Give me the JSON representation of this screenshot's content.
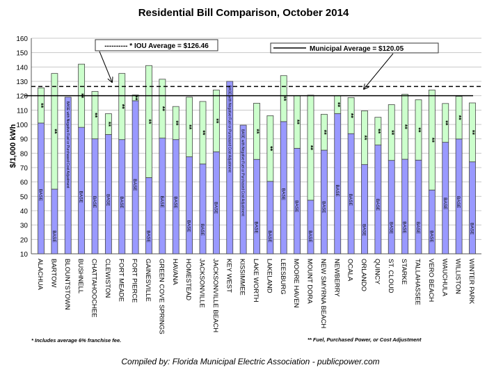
{
  "chart_data": {
    "type": "bar",
    "stacked": true,
    "title": "Residential Bill Comparison, October 2014",
    "ylabel": "$/1,000 kWh",
    "xlabel": "",
    "ylim": [
      10,
      160
    ],
    "yticks": [
      10,
      20,
      30,
      40,
      50,
      60,
      70,
      80,
      90,
      100,
      110,
      120,
      130,
      140,
      150,
      160
    ],
    "grid": true,
    "categories": [
      "ALACHUA",
      "BARTOW",
      "BLOUNTSTOWN",
      "BUSHNELL",
      "CHATTAHOOCHEE",
      "CLEWISTON",
      "FORT MEADE",
      "FORT PIERCE",
      "GAINESVILLE",
      "GREEN COVE SPRINGS",
      "HAVANA",
      "HOMESTEAD",
      "JACKSONVILLE",
      "JACKSONVILLE BEACH",
      "KEY WEST",
      "KISSIMMEE",
      "LAKE WORTH",
      "LAKELAND",
      "LEESBURG",
      "MOORE HAVEN",
      "MOUNT DORA",
      "NEW SMYRNA BEACH",
      "NEWBERRY",
      "OCALA",
      "ORLANDO",
      "QUINCY",
      "ST. CLOUD",
      "STARKE",
      "TALLAHASSEE",
      "VERO BEACH",
      "WAUCHULA",
      "WILLISTON",
      "WINTER PARK"
    ],
    "totals": [
      125.5,
      135.5,
      119,
      142,
      123,
      107.5,
      135.5,
      120.5,
      141,
      131.5,
      112.5,
      119,
      116,
      124,
      130,
      99.5,
      114.8,
      106.1,
      134,
      120.1,
      120.4,
      107.1,
      120,
      118.7,
      109.5,
      105,
      113.8,
      121,
      117.2,
      124,
      114.6,
      119.6,
      115
    ],
    "base": [
      101,
      55,
      119,
      98,
      90,
      93,
      89.5,
      116.5,
      63,
      90.5,
      89.5,
      77.5,
      72.5,
      81,
      130,
      99.5,
      75.7,
      60.4,
      102,
      83.4,
      47.3,
      82.1,
      107.6,
      93.6,
      72.1,
      85.7,
      75,
      75.8,
      75.2,
      54.4,
      87.6,
      89.9,
      74
    ],
    "negative_fuel": [
      false,
      false,
      true,
      false,
      false,
      false,
      false,
      false,
      false,
      false,
      false,
      false,
      false,
      false,
      true,
      true,
      false,
      false,
      false,
      false,
      false,
      false,
      false,
      false,
      false,
      false,
      false,
      false,
      false,
      false,
      false,
      false,
      false
    ],
    "base_label": "BASE",
    "fuel_label": "**",
    "negative_fuel_label": "BASE with Negative Fuel or Purchased Cost Adjustment",
    "reference_lines": [
      {
        "label": "---------- * IOU Average = $126.46",
        "value": 126.46,
        "style": "dashed"
      },
      {
        "label": "Municipal Average = $120.05",
        "value": 120.05,
        "style": "solid"
      }
    ],
    "colors": {
      "base": "#9999ff",
      "fuel": "#ccffcc",
      "outline": "#444444"
    },
    "footnotes": {
      "left": "* Includes average 6% franchise fee.",
      "right": "** Fuel, Purchased Power, or Cost Adjustment"
    },
    "credit": "Compiled by: Florida Municipal Electric Association - publicpower.com"
  }
}
